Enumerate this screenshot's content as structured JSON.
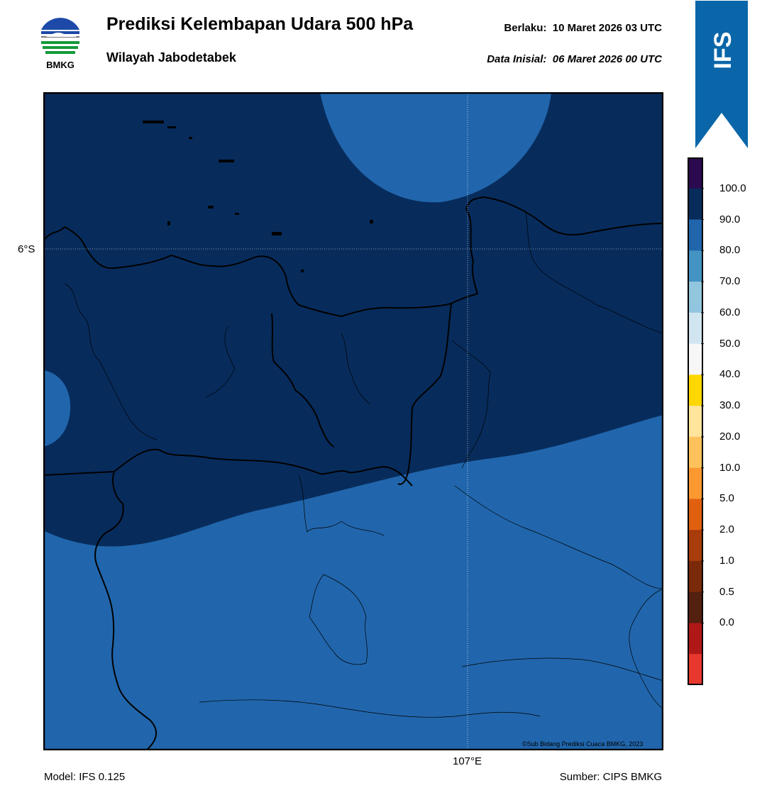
{
  "header": {
    "title": "Prediksi Kelembapan Udara 500 hPa",
    "subtitle": "Wilayah Jabodetabek",
    "valid_label": "Berlaku:",
    "valid_time": "10 Maret 2026 03 UTC",
    "init_label": "Data Inisial:",
    "init_time": "06 Maret 2026 00 UTC"
  },
  "logo": {
    "text": "BMKG",
    "icon": "bmkg-logo"
  },
  "badge": {
    "text": "IFS",
    "color": "#0a66a8"
  },
  "map": {
    "lat_label": "6°S",
    "lon_label": "107°E",
    "copyright": "©Sub Bidang Prediksi Cuaca BMKG, 2023",
    "colors": {
      "humid_90_100": "#072c5c",
      "humid_80_90": "#2166ac"
    }
  },
  "footer": {
    "model": "Model: IFS 0.125",
    "source": "Sumber: CIPS BMKG"
  },
  "colorbar": {
    "labels": [
      "100.0",
      "90.0",
      "80.0",
      "70.0",
      "60.0",
      "50.0",
      "40.0",
      "30.0",
      "20.0",
      "10.0",
      "5.0",
      "2.0",
      "1.0",
      "0.5",
      "0.0"
    ],
    "colors": [
      "#2c0a4f",
      "#072c5c",
      "#2166ac",
      "#4393c3",
      "#92c5de",
      "#d1e5f0",
      "#f7f7f7",
      "#ffd700",
      "#ffe49c",
      "#fec25c",
      "#fc9830",
      "#e06010",
      "#a83c0a",
      "#7a2a0a",
      "#54200f",
      "#b01818",
      "#e8382e"
    ]
  }
}
